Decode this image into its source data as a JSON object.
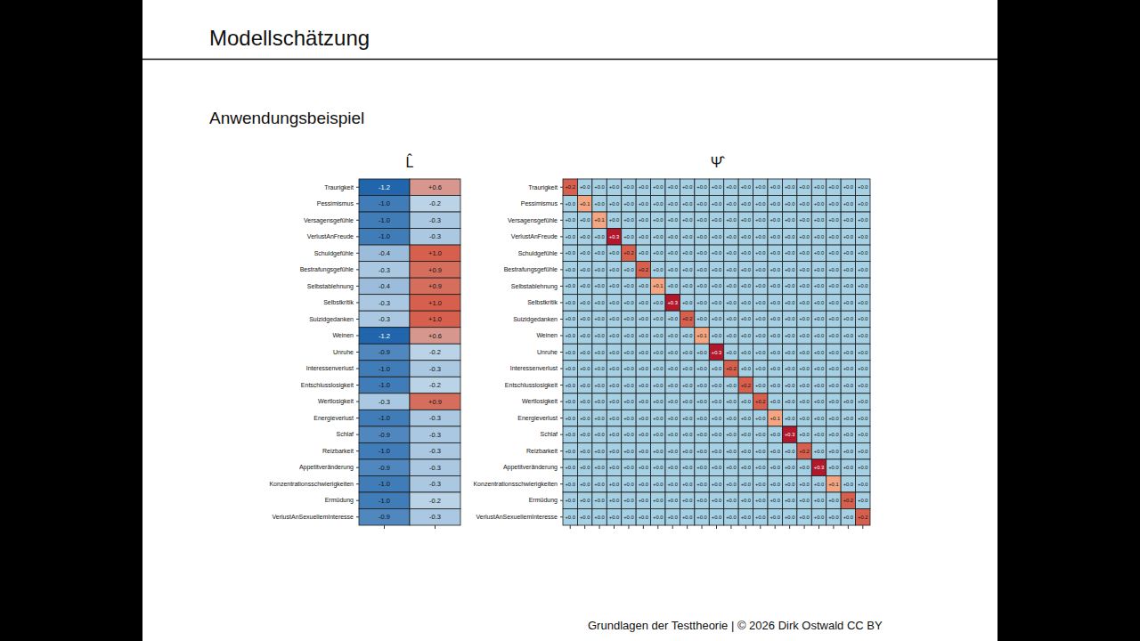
{
  "slide": {
    "title": "Modellschätzung",
    "subtitle": "Anwendungsbeispiel",
    "footer": "Grundlagen der Testtheorie | © 2026 Dirk Ostwald CC BY"
  },
  "chart_data": [
    {
      "type": "heatmap",
      "title": "L̂",
      "tick_labels": "y",
      "data_labels": true,
      "rows": [
        "Traurigkeit",
        "Pessimismus",
        "Versagensgefühle",
        "VerlustAnFreude",
        "Schuldgefühle",
        "Bestrafungsgefühle",
        "Selbstablehnung",
        "Selbstkritik",
        "Suizidgedanken",
        "Weinen",
        "Unruhe",
        "Interessenverlust",
        "Entschlusslosigkeit",
        "Wertlosigkeit",
        "Energieverlust",
        "Schlaf",
        "Reizbarkeit",
        "Appetitveränderung",
        "Konzentrationsschwierigkeiten",
        "Ermüdung",
        "VerlustAnSexuellemInteresse"
      ],
      "values": [
        [
          -1.2,
          0.6
        ],
        [
          -1.0,
          -0.2
        ],
        [
          -1.0,
          -0.3
        ],
        [
          -1.0,
          -0.3
        ],
        [
          -0.4,
          1.0
        ],
        [
          -0.3,
          0.9
        ],
        [
          -0.4,
          0.9
        ],
        [
          -0.3,
          1.0
        ],
        [
          -0.3,
          1.0
        ],
        [
          -1.2,
          0.6
        ],
        [
          -0.9,
          -0.2
        ],
        [
          -1.0,
          -0.3
        ],
        [
          -1.0,
          -0.2
        ],
        [
          -0.3,
          0.9
        ],
        [
          -1.0,
          -0.3
        ],
        [
          -0.9,
          -0.3
        ],
        [
          -1.0,
          -0.3
        ],
        [
          -0.9,
          -0.3
        ],
        [
          -1.0,
          -0.3
        ],
        [
          -1.0,
          -0.2
        ],
        [
          -0.9,
          -0.3
        ]
      ],
      "value_labels": [
        [
          "-1.2",
          "+0.6"
        ],
        [
          "-1.0",
          "-0.2"
        ],
        [
          "-1.0",
          "-0.3"
        ],
        [
          "-1.0",
          "-0.3"
        ],
        [
          "-0.4",
          "+1.0"
        ],
        [
          "-0.3",
          "+0.9"
        ],
        [
          "-0.4",
          "+0.9"
        ],
        [
          "-0.3",
          "+1.0"
        ],
        [
          "-0.3",
          "+1.0"
        ],
        [
          "-1.2",
          "+0.6"
        ],
        [
          "-0.9",
          "-0.2"
        ],
        [
          "-1.0",
          "-0.3"
        ],
        [
          "-1.0",
          "-0.2"
        ],
        [
          "-0.3",
          "+0.9"
        ],
        [
          "-1.0",
          "-0.3"
        ],
        [
          "-0.9",
          "-0.3"
        ],
        [
          "-1.0",
          "-0.3"
        ],
        [
          "-0.9",
          "-0.3"
        ],
        [
          "-1.0",
          "-0.3"
        ],
        [
          "-1.0",
          "-0.2"
        ],
        [
          "-0.9",
          "-0.3"
        ]
      ]
    },
    {
      "type": "heatmap",
      "title": "Ψ̂",
      "tick_labels": "y",
      "data_labels": true,
      "rows": [
        "Traurigkeit",
        "Pessimismus",
        "Versagensgefühle",
        "VerlustAnFreude",
        "Schuldgefühle",
        "Bestrafungsgefühle",
        "Selbstablehnung",
        "Selbstkritik",
        "Suizidgedanken",
        "Weinen",
        "Unruhe",
        "Interessenverlust",
        "Entschlusslosigkeit",
        "Wertlosigkeit",
        "Energieverlust",
        "Schlaf",
        "Reizbarkeit",
        "Appetitveränderung",
        "Konzentrationsschwierigkeiten",
        "Ermüdung",
        "VerlustAnSexuellemInteresse"
      ],
      "values": [
        [
          0.2,
          0,
          0,
          0,
          0,
          0,
          0,
          0,
          0,
          0,
          0,
          0,
          0,
          0,
          0,
          0,
          0,
          0,
          0,
          0,
          0
        ],
        [
          0,
          0.1,
          0,
          0,
          0,
          0,
          0,
          0,
          0,
          0,
          0,
          0,
          0,
          0,
          0,
          0,
          0,
          0,
          0,
          0,
          0
        ],
        [
          0,
          0,
          0.1,
          0,
          0,
          0,
          0,
          0,
          0,
          0,
          0,
          0,
          0,
          0,
          0,
          0,
          0,
          0,
          0,
          0,
          0
        ],
        [
          0,
          0,
          0,
          0.3,
          0,
          0,
          0,
          0,
          0,
          0,
          0,
          0,
          0,
          0,
          0,
          0,
          0,
          0,
          0,
          0,
          0
        ],
        [
          0,
          0,
          0,
          0,
          0.2,
          0,
          0,
          0,
          0,
          0,
          0,
          0,
          0,
          0,
          0,
          0,
          0,
          0,
          0,
          0,
          0
        ],
        [
          0,
          0,
          0,
          0,
          0,
          0.2,
          0,
          0,
          0,
          0,
          0,
          0,
          0,
          0,
          0,
          0,
          0,
          0,
          0,
          0,
          0
        ],
        [
          0,
          0,
          0,
          0,
          0,
          0,
          0.1,
          0,
          0,
          0,
          0,
          0,
          0,
          0,
          0,
          0,
          0,
          0,
          0,
          0,
          0
        ],
        [
          0,
          0,
          0,
          0,
          0,
          0,
          0,
          0.3,
          0,
          0,
          0,
          0,
          0,
          0,
          0,
          0,
          0,
          0,
          0,
          0,
          0
        ],
        [
          0,
          0,
          0,
          0,
          0,
          0,
          0,
          0,
          0.2,
          0,
          0,
          0,
          0,
          0,
          0,
          0,
          0,
          0,
          0,
          0,
          0
        ],
        [
          0,
          0,
          0,
          0,
          0,
          0,
          0,
          0,
          0,
          0.1,
          0,
          0,
          0,
          0,
          0,
          0,
          0,
          0,
          0,
          0,
          0
        ],
        [
          0,
          0,
          0,
          0,
          0,
          0,
          0,
          0,
          0,
          0,
          0.3,
          0,
          0,
          0,
          0,
          0,
          0,
          0,
          0,
          0,
          0
        ],
        [
          0,
          0,
          0,
          0,
          0,
          0,
          0,
          0,
          0,
          0,
          0,
          0.2,
          0,
          0,
          0,
          0,
          0,
          0,
          0,
          0,
          0
        ],
        [
          0,
          0,
          0,
          0,
          0,
          0,
          0,
          0,
          0,
          0,
          0,
          0,
          0.2,
          0,
          0,
          0,
          0,
          0,
          0,
          0,
          0
        ],
        [
          0,
          0,
          0,
          0,
          0,
          0,
          0,
          0,
          0,
          0,
          0,
          0,
          0,
          0.2,
          0,
          0,
          0,
          0,
          0,
          0,
          0
        ],
        [
          0,
          0,
          0,
          0,
          0,
          0,
          0,
          0,
          0,
          0,
          0,
          0,
          0,
          0,
          0.1,
          0,
          0,
          0,
          0,
          0,
          0
        ],
        [
          0,
          0,
          0,
          0,
          0,
          0,
          0,
          0,
          0,
          0,
          0,
          0,
          0,
          0,
          0,
          0.3,
          0,
          0,
          0,
          0,
          0
        ],
        [
          0,
          0,
          0,
          0,
          0,
          0,
          0,
          0,
          0,
          0,
          0,
          0,
          0,
          0,
          0,
          0,
          0.2,
          0,
          0,
          0,
          0
        ],
        [
          0,
          0,
          0,
          0,
          0,
          0,
          0,
          0,
          0,
          0,
          0,
          0,
          0,
          0,
          0,
          0,
          0,
          0.3,
          0,
          0,
          0
        ],
        [
          0,
          0,
          0,
          0,
          0,
          0,
          0,
          0,
          0,
          0,
          0,
          0,
          0,
          0,
          0,
          0,
          0,
          0,
          0.1,
          0,
          0
        ],
        [
          0,
          0,
          0,
          0,
          0,
          0,
          0,
          0,
          0,
          0,
          0,
          0,
          0,
          0,
          0,
          0,
          0,
          0,
          0,
          0.2,
          0
        ],
        [
          0,
          0,
          0,
          0,
          0,
          0,
          0,
          0,
          0,
          0,
          0,
          0,
          0,
          0,
          0,
          0,
          0,
          0,
          0,
          0,
          0.2
        ]
      ],
      "value_labels": [
        [
          "+0.2",
          "+0.0",
          "+0.0",
          "+0.0",
          "+0.0",
          "+0.0",
          "+0.0",
          "+0.0",
          "+0.0",
          "+0.0",
          "+0.0",
          "+0.0",
          "+0.0",
          "+0.0",
          "+0.0",
          "+0.0",
          "+0.0",
          "+0.0",
          "+0.0",
          "+0.0",
          "+0.0"
        ],
        [
          "+0.0",
          "+0.1",
          "+0.0",
          "+0.0",
          "+0.0",
          "+0.0",
          "+0.0",
          "+0.0",
          "+0.0",
          "+0.0",
          "+0.0",
          "+0.0",
          "+0.0",
          "+0.0",
          "+0.0",
          "+0.0",
          "+0.0",
          "+0.0",
          "+0.0",
          "+0.0",
          "+0.0"
        ],
        [
          "+0.0",
          "+0.0",
          "+0.1",
          "+0.0",
          "+0.0",
          "+0.0",
          "+0.0",
          "+0.0",
          "+0.0",
          "+0.0",
          "+0.0",
          "+0.0",
          "+0.0",
          "+0.0",
          "+0.0",
          "+0.0",
          "+0.0",
          "+0.0",
          "+0.0",
          "+0.0",
          "+0.0"
        ],
        [
          "+0.0",
          "+0.0",
          "+0.0",
          "+0.3",
          "+0.0",
          "+0.0",
          "+0.0",
          "+0.0",
          "+0.0",
          "+0.0",
          "+0.0",
          "+0.0",
          "+0.0",
          "+0.0",
          "+0.0",
          "+0.0",
          "+0.0",
          "+0.0",
          "+0.0",
          "+0.0",
          "+0.0"
        ],
        [
          "+0.0",
          "+0.0",
          "+0.0",
          "+0.0",
          "+0.2",
          "+0.0",
          "+0.0",
          "+0.0",
          "+0.0",
          "+0.0",
          "+0.0",
          "+0.0",
          "+0.0",
          "+0.0",
          "+0.0",
          "+0.0",
          "+0.0",
          "+0.0",
          "+0.0",
          "+0.0",
          "+0.0"
        ],
        [
          "+0.0",
          "+0.0",
          "+0.0",
          "+0.0",
          "+0.0",
          "+0.2",
          "+0.0",
          "+0.0",
          "+0.0",
          "+0.0",
          "+0.0",
          "+0.0",
          "+0.0",
          "+0.0",
          "+0.0",
          "+0.0",
          "+0.0",
          "+0.0",
          "+0.0",
          "+0.0",
          "+0.0"
        ],
        [
          "+0.0",
          "+0.0",
          "+0.0",
          "+0.0",
          "+0.0",
          "+0.0",
          "+0.1",
          "+0.0",
          "+0.0",
          "+0.0",
          "+0.0",
          "+0.0",
          "+0.0",
          "+0.0",
          "+0.0",
          "+0.0",
          "+0.0",
          "+0.0",
          "+0.0",
          "+0.0",
          "+0.0"
        ],
        [
          "+0.0",
          "+0.0",
          "+0.0",
          "+0.0",
          "+0.0",
          "+0.0",
          "+0.0",
          "+0.3",
          "+0.0",
          "+0.0",
          "+0.0",
          "+0.0",
          "+0.0",
          "+0.0",
          "+0.0",
          "+0.0",
          "+0.0",
          "+0.0",
          "+0.0",
          "+0.0",
          "+0.0"
        ],
        [
          "+0.0",
          "+0.0",
          "+0.0",
          "+0.0",
          "+0.0",
          "+0.0",
          "+0.0",
          "+0.0",
          "+0.2",
          "+0.0",
          "+0.0",
          "+0.0",
          "+0.0",
          "+0.0",
          "+0.0",
          "+0.0",
          "+0.0",
          "+0.0",
          "+0.0",
          "+0.0",
          "+0.0"
        ],
        [
          "+0.0",
          "+0.0",
          "+0.0",
          "+0.0",
          "+0.0",
          "+0.0",
          "+0.0",
          "+0.0",
          "+0.0",
          "+0.1",
          "+0.0",
          "+0.0",
          "+0.0",
          "+0.0",
          "+0.0",
          "+0.0",
          "+0.0",
          "+0.0",
          "+0.0",
          "+0.0",
          "+0.0"
        ],
        [
          "+0.0",
          "+0.0",
          "+0.0",
          "+0.0",
          "+0.0",
          "+0.0",
          "+0.0",
          "+0.0",
          "+0.0",
          "+0.0",
          "+0.3",
          "+0.0",
          "+0.0",
          "+0.0",
          "+0.0",
          "+0.0",
          "+0.0",
          "+0.0",
          "+0.0",
          "+0.0",
          "+0.0"
        ],
        [
          "+0.0",
          "+0.0",
          "+0.0",
          "+0.0",
          "+0.0",
          "+0.0",
          "+0.0",
          "+0.0",
          "+0.0",
          "+0.0",
          "+0.0",
          "+0.2",
          "+0.0",
          "+0.0",
          "+0.0",
          "+0.0",
          "+0.0",
          "+0.0",
          "+0.0",
          "+0.0",
          "+0.0"
        ],
        [
          "+0.0",
          "+0.0",
          "+0.0",
          "+0.0",
          "+0.0",
          "+0.0",
          "+0.0",
          "+0.0",
          "+0.0",
          "+0.0",
          "+0.0",
          "+0.0",
          "+0.2",
          "+0.0",
          "+0.0",
          "+0.0",
          "+0.0",
          "+0.0",
          "+0.0",
          "+0.0",
          "+0.0"
        ],
        [
          "+0.0",
          "+0.0",
          "+0.0",
          "+0.0",
          "+0.0",
          "+0.0",
          "+0.0",
          "+0.0",
          "+0.0",
          "+0.0",
          "+0.0",
          "+0.0",
          "+0.0",
          "+0.2",
          "+0.0",
          "+0.0",
          "+0.0",
          "+0.0",
          "+0.0",
          "+0.0",
          "+0.0"
        ],
        [
          "+0.0",
          "+0.0",
          "+0.0",
          "+0.0",
          "+0.0",
          "+0.0",
          "+0.0",
          "+0.0",
          "+0.0",
          "+0.0",
          "+0.0",
          "+0.0",
          "+0.0",
          "+0.0",
          "+0.1",
          "+0.0",
          "+0.0",
          "+0.0",
          "+0.0",
          "+0.0",
          "+0.0"
        ],
        [
          "+0.0",
          "+0.0",
          "+0.0",
          "+0.0",
          "+0.0",
          "+0.0",
          "+0.0",
          "+0.0",
          "+0.0",
          "+0.0",
          "+0.0",
          "+0.0",
          "+0.0",
          "+0.0",
          "+0.0",
          "+0.3",
          "+0.0",
          "+0.0",
          "+0.0",
          "+0.0",
          "+0.0"
        ],
        [
          "+0.0",
          "+0.0",
          "+0.0",
          "+0.0",
          "+0.0",
          "+0.0",
          "+0.0",
          "+0.0",
          "+0.0",
          "+0.0",
          "+0.0",
          "+0.0",
          "+0.0",
          "+0.0",
          "+0.0",
          "+0.0",
          "+0.2",
          "+0.0",
          "+0.0",
          "+0.0",
          "+0.0"
        ],
        [
          "+0.0",
          "+0.0",
          "+0.0",
          "+0.0",
          "+0.0",
          "+0.0",
          "+0.0",
          "+0.0",
          "+0.0",
          "+0.0",
          "+0.0",
          "+0.0",
          "+0.0",
          "+0.0",
          "+0.0",
          "+0.0",
          "+0.0",
          "+0.3",
          "+0.0",
          "+0.0",
          "+0.0"
        ],
        [
          "+0.0",
          "+0.0",
          "+0.0",
          "+0.0",
          "+0.0",
          "+0.0",
          "+0.0",
          "+0.0",
          "+0.0",
          "+0.0",
          "+0.0",
          "+0.0",
          "+0.0",
          "+0.0",
          "+0.0",
          "+0.0",
          "+0.0",
          "+0.0",
          "+0.1",
          "+0.0",
          "+0.0"
        ],
        [
          "+0.0",
          "+0.0",
          "+0.0",
          "+0.0",
          "+0.0",
          "+0.0",
          "+0.0",
          "+0.0",
          "+0.0",
          "+0.0",
          "+0.0",
          "+0.0",
          "+0.0",
          "+0.0",
          "+0.0",
          "+0.0",
          "+0.0",
          "+0.0",
          "+0.0",
          "+0.2",
          "+0.0"
        ],
        [
          "+0.0",
          "+0.0",
          "+0.0",
          "+0.0",
          "+0.0",
          "+0.0",
          "+0.0",
          "+0.0",
          "+0.0",
          "+0.0",
          "+0.0",
          "+0.0",
          "+0.0",
          "+0.0",
          "+0.0",
          "+0.0",
          "+0.0",
          "+0.0",
          "+0.0",
          "+0.0",
          "+0.2"
        ]
      ]
    }
  ]
}
